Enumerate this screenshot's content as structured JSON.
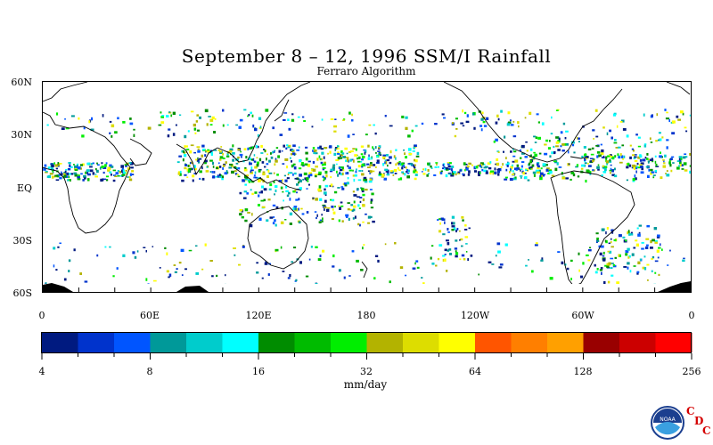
{
  "title": "September 8 – 12, 1996 SSM/I Rainfall",
  "subtitle": "Ferraro Algorithm",
  "map": {
    "lat_labels": [
      "60N",
      "30N",
      "EQ",
      "30S",
      "60S"
    ],
    "lon_labels": [
      "0",
      "60E",
      "120E",
      "180",
      "120W",
      "60W",
      "0"
    ]
  },
  "colorbar": {
    "colors": [
      "#001a80",
      "#0033cc",
      "#0055ff",
      "#009999",
      "#00cccc",
      "#00ffff",
      "#008c00",
      "#00bb00",
      "#00ee00",
      "#b3b300",
      "#dddd00",
      "#ffff00",
      "#ff5500",
      "#ff7f00",
      "#ffa000",
      "#990000",
      "#cc0000",
      "#ff0000"
    ],
    "tick_labels": [
      "4",
      "8",
      "16",
      "32",
      "64",
      "128",
      "256"
    ],
    "unit": "mm/day"
  },
  "logo": {
    "noaa_text": "NOAA",
    "cdc_letters": [
      "C",
      "D",
      "C"
    ]
  }
}
